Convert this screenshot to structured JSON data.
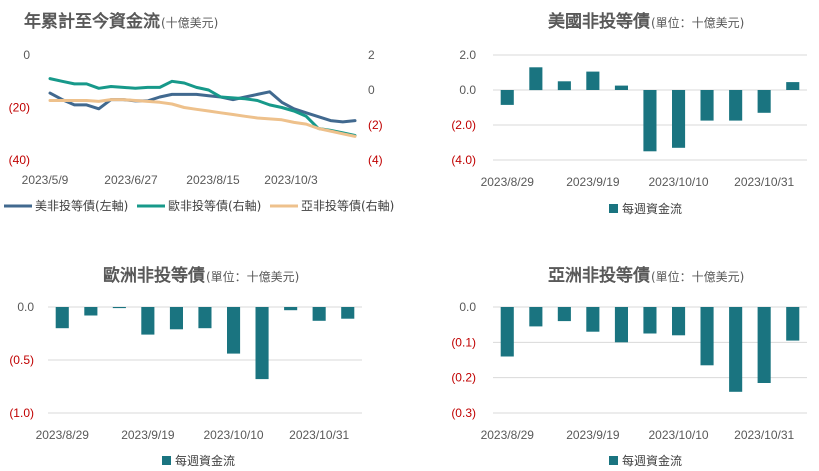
{
  "colors": {
    "us": "#41698f",
    "europe": "#17998a",
    "asia": "#eec18c",
    "bar": "#1a7480",
    "tick_negative": "#c00000",
    "text": "#595959"
  },
  "chart_data": [
    {
      "id": "ytd",
      "type": "line",
      "title": "年累計至今資金流",
      "subtitle": "(十億美元)",
      "x_ticks": [
        "2023/5/9",
        "2023/6/27",
        "2023/8/15",
        "2023/10/3"
      ],
      "x_range": [
        0,
        25
      ],
      "y_left_ticks": [
        "0",
        "(20)",
        "(40)"
      ],
      "y_left_range": [
        -40,
        0
      ],
      "y_right_ticks": [
        "2",
        "0",
        "(2)",
        "(4)"
      ],
      "y_right_range": [
        -4,
        2
      ],
      "gridlines": false,
      "legend_position": "bottom",
      "series": [
        {
          "name": "美非投等債(左軸)",
          "axis": "left",
          "color_key": "us",
          "values": [
            -14.5,
            -17,
            -19,
            -19,
            -20.5,
            -17,
            -17,
            -17.5,
            -17.5,
            -16,
            -15,
            -15,
            -15,
            -15.5,
            -16,
            -17,
            -16,
            -15,
            -14,
            -18,
            -20.5,
            -22,
            -23.5,
            -25,
            -25.5,
            -25
          ]
        },
        {
          "name": "歐非投等債(右軸)",
          "axis": "right",
          "color_key": "europe",
          "values": [
            0.65,
            0.5,
            0.35,
            0.35,
            0.1,
            0.2,
            0.15,
            0.1,
            0.15,
            0.15,
            0.5,
            0.4,
            0.15,
            0.0,
            -0.4,
            -0.45,
            -0.5,
            -0.6,
            -0.85,
            -1.0,
            -1.2,
            -1.5,
            -2.2,
            -2.3,
            -2.45,
            -2.6
          ]
        },
        {
          "name": "亞非投等債(右軸)",
          "axis": "right",
          "color_key": "asia",
          "values": [
            -0.6,
            -0.6,
            -0.6,
            -0.6,
            -0.65,
            -0.55,
            -0.55,
            -0.6,
            -0.65,
            -0.7,
            -0.8,
            -1.0,
            -1.1,
            -1.2,
            -1.3,
            -1.4,
            -1.5,
            -1.6,
            -1.65,
            -1.7,
            -1.85,
            -1.95,
            -2.2,
            -2.35,
            -2.5,
            -2.65
          ]
        }
      ]
    },
    {
      "id": "us",
      "type": "bar",
      "title": "美國非投等債",
      "subtitle": "(單位：十億美元)",
      "series_name": "每週資金流",
      "y_ticks": [
        "2.0",
        "0.0",
        "(2.0)",
        "(4.0)"
      ],
      "y_range": [
        -4,
        2
      ],
      "x_ticks": [
        "2023/8/29",
        "2023/9/19",
        "2023/10/10",
        "2023/10/31"
      ],
      "tick_indices": [
        0,
        3,
        6,
        9
      ],
      "values": [
        -0.85,
        1.3,
        0.5,
        1.05,
        0.25,
        -3.5,
        -3.3,
        -1.75,
        -1.75,
        -1.3,
        0.45
      ],
      "gridlines": true,
      "legend_position": "bottom"
    },
    {
      "id": "europe",
      "type": "bar",
      "title": "歐洲非投等債",
      "subtitle": "(單位：十億美元)",
      "series_name": "每週資金流",
      "y_ticks": [
        "0.0",
        "(0.5)",
        "(1.0)"
      ],
      "y_range": [
        -1,
        0
      ],
      "x_ticks": [
        "2023/8/29",
        "2023/9/19",
        "2023/10/10",
        "2023/10/31"
      ],
      "tick_indices": [
        0,
        3,
        6,
        9
      ],
      "values": [
        -0.2,
        -0.08,
        -0.01,
        -0.26,
        -0.21,
        -0.2,
        -0.44,
        -0.68,
        -0.03,
        -0.13,
        -0.11
      ],
      "gridlines": true,
      "legend_position": "bottom"
    },
    {
      "id": "asia",
      "type": "bar",
      "title": "亞洲非投等債",
      "subtitle": "(單位：十億美元)",
      "series_name": "每週資金流",
      "y_ticks": [
        "0.0",
        "(0.1)",
        "(0.2)",
        "(0.3)"
      ],
      "y_range": [
        -0.3,
        0
      ],
      "x_ticks": [
        "2023/8/29",
        "2023/9/19",
        "2023/10/10",
        "2023/10/31"
      ],
      "tick_indices": [
        0,
        3,
        6,
        9
      ],
      "values": [
        -0.14,
        -0.055,
        -0.04,
        -0.07,
        -0.1,
        -0.075,
        -0.08,
        -0.165,
        -0.24,
        -0.215,
        -0.095
      ],
      "gridlines": true,
      "legend_position": "bottom"
    }
  ]
}
